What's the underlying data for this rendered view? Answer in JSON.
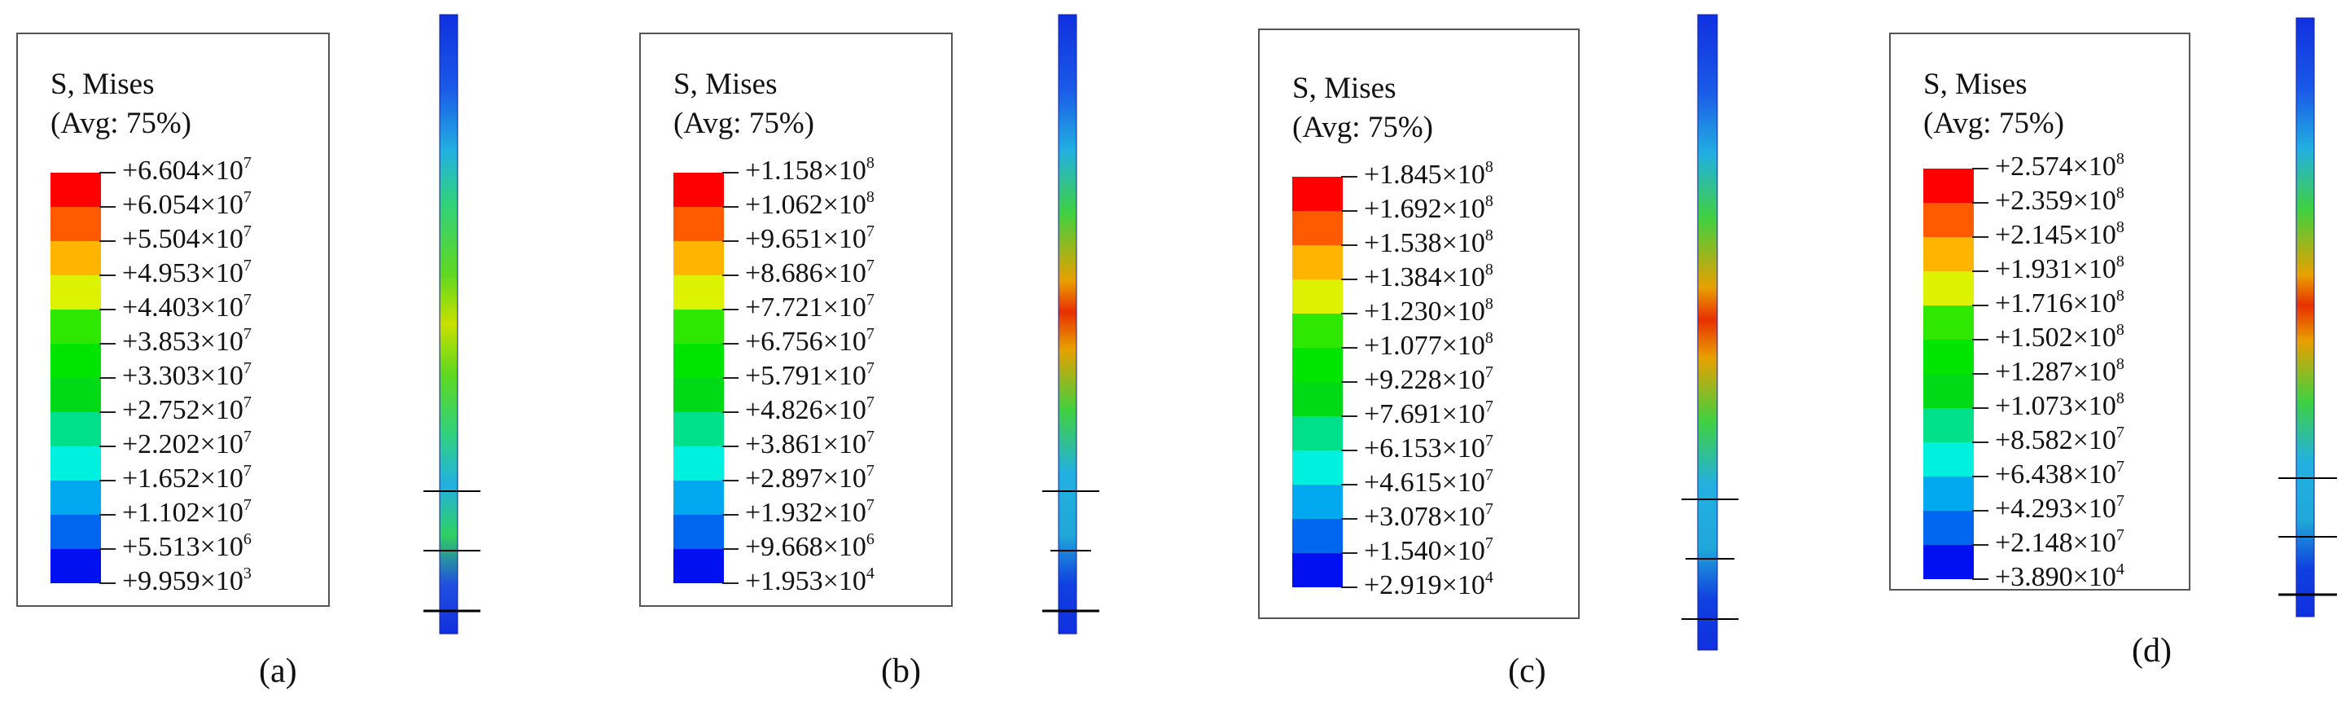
{
  "legend_title_line1": "S, Mises",
  "legend_title_line2": "(Avg: 75%)",
  "colors": [
    "#ff0000",
    "#ff5a00",
    "#ffb400",
    "#ddf200",
    "#2ee800",
    "#00e500",
    "#00d916",
    "#00e08a",
    "#00f0e0",
    "#00a8f0",
    "#0066f0",
    "#0010f0"
  ],
  "panels": [
    {
      "caption": "(a)",
      "values": [
        {
          "m": "+6.604×10",
          "e": "7"
        },
        {
          "m": "+6.054×10",
          "e": "7"
        },
        {
          "m": "+5.504×10",
          "e": "7"
        },
        {
          "m": "+4.953×10",
          "e": "7"
        },
        {
          "m": "+4.403×10",
          "e": "7"
        },
        {
          "m": "+3.853×10",
          "e": "7"
        },
        {
          "m": "+3.303×10",
          "e": "7"
        },
        {
          "m": "+2.752×10",
          "e": "7"
        },
        {
          "m": "+2.202×10",
          "e": "7"
        },
        {
          "m": "+1.652×10",
          "e": "7"
        },
        {
          "m": "+1.102×10",
          "e": "7"
        },
        {
          "m": "+5.513×10",
          "e": "6"
        },
        {
          "m": "+9.959×10",
          "e": "3"
        }
      ]
    },
    {
      "caption": "(b)",
      "values": [
        {
          "m": "+1.158×10",
          "e": "8"
        },
        {
          "m": "+1.062×10",
          "e": "8"
        },
        {
          "m": "+9.651×10",
          "e": "7"
        },
        {
          "m": "+8.686×10",
          "e": "7"
        },
        {
          "m": "+7.721×10",
          "e": "7"
        },
        {
          "m": "+6.756×10",
          "e": "7"
        },
        {
          "m": "+5.791×10",
          "e": "7"
        },
        {
          "m": "+4.826×10",
          "e": "7"
        },
        {
          "m": "+3.861×10",
          "e": "7"
        },
        {
          "m": "+2.897×10",
          "e": "7"
        },
        {
          "m": "+1.932×10",
          "e": "7"
        },
        {
          "m": "+9.668×10",
          "e": "6"
        },
        {
          "m": "+1.953×10",
          "e": "4"
        }
      ]
    },
    {
      "caption": "(c)",
      "values": [
        {
          "m": "+1.845×10",
          "e": "8"
        },
        {
          "m": "+1.692×10",
          "e": "8"
        },
        {
          "m": "+1.538×10",
          "e": "8"
        },
        {
          "m": "+1.384×10",
          "e": "8"
        },
        {
          "m": "+1.230×10",
          "e": "8"
        },
        {
          "m": "+1.077×10",
          "e": "8"
        },
        {
          "m": "+9.228×10",
          "e": "7"
        },
        {
          "m": "+7.691×10",
          "e": "7"
        },
        {
          "m": "+6.153×10",
          "e": "7"
        },
        {
          "m": "+4.615×10",
          "e": "7"
        },
        {
          "m": "+3.078×10",
          "e": "7"
        },
        {
          "m": "+1.540×10",
          "e": "7"
        },
        {
          "m": "+2.919×10",
          "e": "4"
        }
      ]
    },
    {
      "caption": "(d)",
      "values": [
        {
          "m": "+2.574×10",
          "e": "8"
        },
        {
          "m": "+2.359×10",
          "e": "8"
        },
        {
          "m": "+2.145×10",
          "e": "8"
        },
        {
          "m": "+1.931×10",
          "e": "8"
        },
        {
          "m": "+1.716×10",
          "e": "8"
        },
        {
          "m": "+1.502×10",
          "e": "8"
        },
        {
          "m": "+1.287×10",
          "e": "8"
        },
        {
          "m": "+1.073×10",
          "e": "8"
        },
        {
          "m": "+8.582×10",
          "e": "7"
        },
        {
          "m": "+6.438×10",
          "e": "7"
        },
        {
          "m": "+4.293×10",
          "e": "7"
        },
        {
          "m": "+2.148×10",
          "e": "7"
        },
        {
          "m": "+3.890×10",
          "e": "4"
        }
      ]
    }
  ]
}
